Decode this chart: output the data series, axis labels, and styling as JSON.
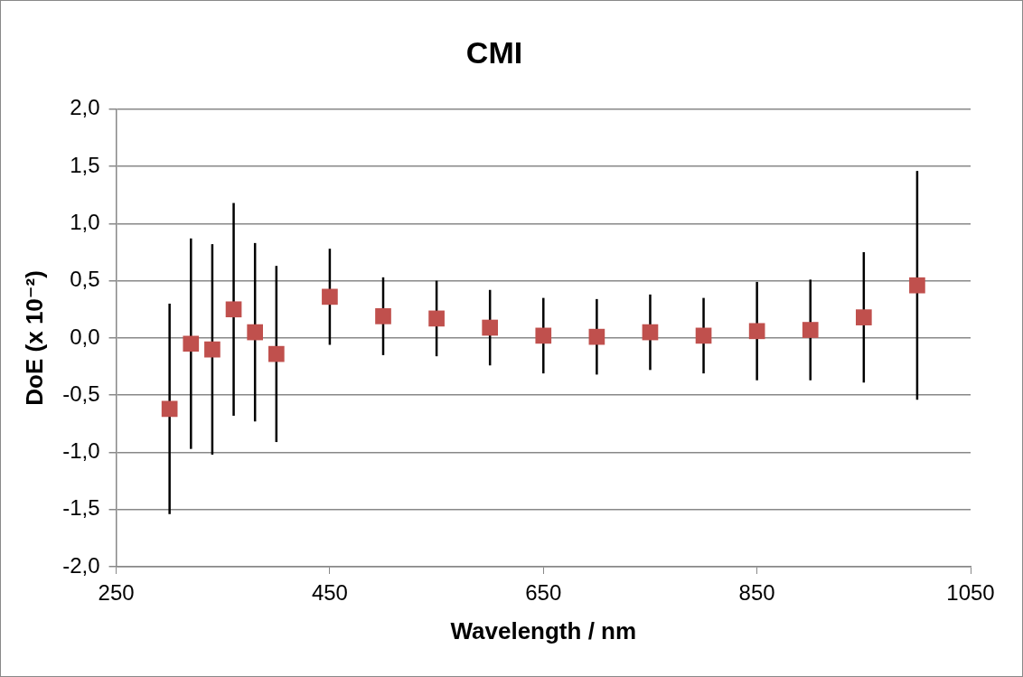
{
  "chart_data": {
    "type": "scatter",
    "title": "CMI",
    "xlabel": "Wavelength / nm",
    "ylabel": "DoE (x 10⁻²)",
    "x": [
      300,
      320,
      340,
      360,
      380,
      400,
      450,
      500,
      550,
      600,
      650,
      700,
      750,
      800,
      850,
      900,
      950,
      1000
    ],
    "series": [
      {
        "color": "#c0504d",
        "values": [
          -0.62,
          -0.05,
          -0.1,
          0.25,
          0.05,
          -0.14,
          0.36,
          0.19,
          0.17,
          0.09,
          0.02,
          0.01,
          0.05,
          0.02,
          0.06,
          0.07,
          0.18,
          0.46
        ],
        "errors": [
          0.92,
          0.92,
          0.92,
          0.93,
          0.78,
          0.77,
          0.42,
          0.34,
          0.33,
          0.33,
          0.33,
          0.33,
          0.33,
          0.33,
          0.43,
          0.44,
          0.57,
          1.0
        ]
      }
    ],
    "xlim": [
      250,
      1050
    ],
    "xticks": [
      250,
      450,
      650,
      850,
      1050
    ],
    "ylim": [
      -2,
      2
    ],
    "yticks": [
      {
        "value": -2,
        "label": "-2,0"
      },
      {
        "value": -1.5,
        "label": "-1,5"
      },
      {
        "value": -1,
        "label": "-1,0"
      },
      {
        "value": -0.5,
        "label": "-0,5"
      },
      {
        "value": 0,
        "label": "0,0"
      },
      {
        "value": 0.5,
        "label": "0,5"
      },
      {
        "value": 1,
        "label": "1,0"
      },
      {
        "value": 1.5,
        "label": "1,5"
      },
      {
        "value": 2,
        "label": "2,0"
      }
    ],
    "grid": "y",
    "marker": "square",
    "legend": false
  }
}
